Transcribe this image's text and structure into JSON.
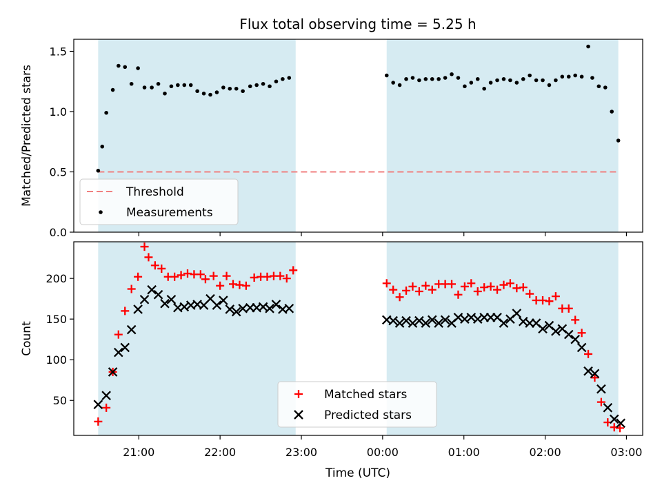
{
  "title": "Flux total observing time = 5.25 h",
  "xlabel": "Time (UTC)",
  "x_ticks": [
    {
      "h": 21,
      "label": "21:00"
    },
    {
      "h": 22,
      "label": "22:00"
    },
    {
      "h": 23,
      "label": "23:00"
    },
    {
      "h": 24,
      "label": "00:00"
    },
    {
      "h": 25,
      "label": "01:00"
    },
    {
      "h": 26,
      "label": "02:00"
    },
    {
      "h": 27,
      "label": "03:00"
    }
  ],
  "colors": {
    "shade": "#add8e6",
    "threshold": "#f08080",
    "measurement": "#000000",
    "matched": "#ff0000",
    "predicted": "#000000"
  },
  "chart_data": [
    {
      "type": "scatter",
      "ylabel": "Matched/Predicted stars",
      "xlim": [
        20.2,
        27.2
      ],
      "ylim": [
        0,
        1.6
      ],
      "y_ticks": [
        "0.0",
        "0.5",
        "1.0",
        "1.5"
      ],
      "shaded_intervals": [
        [
          20.5,
          22.93
        ],
        [
          24.05,
          26.9
        ]
      ],
      "legend": {
        "position": "lower-left",
        "entries": [
          "Threshold",
          "Measurements"
        ]
      },
      "threshold": {
        "name": "Threshold",
        "value": 0.5,
        "x_range": [
          20.5,
          26.9
        ],
        "style": "dashed"
      },
      "series": [
        {
          "name": "Measurements",
          "marker": "dot",
          "x": [
            20.5,
            20.55,
            20.6,
            20.68,
            20.75,
            20.83,
            20.91,
            20.99,
            21.07,
            21.16,
            21.24,
            21.32,
            21.4,
            21.48,
            21.56,
            21.64,
            21.72,
            21.8,
            21.88,
            21.96,
            22.04,
            22.12,
            22.2,
            22.28,
            22.37,
            22.45,
            22.53,
            22.61,
            22.69,
            22.77,
            22.85,
            24.05,
            24.13,
            24.21,
            24.29,
            24.37,
            24.45,
            24.53,
            24.61,
            24.69,
            24.77,
            24.85,
            24.93,
            25.01,
            25.09,
            25.17,
            25.25,
            25.33,
            25.41,
            25.49,
            25.57,
            25.65,
            25.73,
            25.81,
            25.89,
            25.97,
            26.05,
            26.13,
            26.21,
            26.29,
            26.37,
            26.45,
            26.53,
            26.58,
            26.66,
            26.74,
            26.82,
            26.9
          ],
          "y": [
            0.51,
            0.71,
            0.99,
            1.18,
            1.38,
            1.37,
            1.23,
            1.36,
            1.2,
            1.2,
            1.23,
            1.15,
            1.21,
            1.22,
            1.22,
            1.22,
            1.17,
            1.15,
            1.14,
            1.16,
            1.2,
            1.19,
            1.19,
            1.17,
            1.21,
            1.22,
            1.23,
            1.21,
            1.25,
            1.27,
            1.28,
            1.3,
            1.24,
            1.22,
            1.27,
            1.28,
            1.26,
            1.27,
            1.27,
            1.27,
            1.28,
            1.31,
            1.28,
            1.21,
            1.24,
            1.27,
            1.19,
            1.24,
            1.26,
            1.27,
            1.26,
            1.24,
            1.27,
            1.3,
            1.26,
            1.26,
            1.22,
            1.26,
            1.29,
            1.29,
            1.3,
            1.29,
            1.54,
            1.28,
            1.21,
            1.2,
            1.0,
            0.76
          ]
        }
      ]
    },
    {
      "type": "scatter",
      "ylabel": "Count",
      "xlim": [
        20.2,
        27.2
      ],
      "ylim": [
        7,
        245
      ],
      "y_ticks": [
        "50",
        "100",
        "150",
        "200"
      ],
      "shaded_intervals": [
        [
          20.5,
          22.93
        ],
        [
          24.05,
          26.9
        ]
      ],
      "legend": {
        "position": "lower-center",
        "entries": [
          "Matched stars",
          "Predicted stars"
        ]
      },
      "series": [
        {
          "name": "Matched stars",
          "marker": "plus",
          "x": [
            20.5,
            20.6,
            20.68,
            20.75,
            20.83,
            20.91,
            20.99,
            21.07,
            21.12,
            21.2,
            21.28,
            21.36,
            21.44,
            21.52,
            21.6,
            21.68,
            21.76,
            21.82,
            21.92,
            22.0,
            22.08,
            22.16,
            22.24,
            22.32,
            22.42,
            22.5,
            22.58,
            22.66,
            22.74,
            22.82,
            22.9,
            24.05,
            24.13,
            24.21,
            24.29,
            24.37,
            24.45,
            24.53,
            24.61,
            24.69,
            24.77,
            24.85,
            24.93,
            25.01,
            25.09,
            25.17,
            25.25,
            25.33,
            25.41,
            25.49,
            25.57,
            25.65,
            25.73,
            25.81,
            25.89,
            25.97,
            26.05,
            26.13,
            26.21,
            26.29,
            26.37,
            26.45,
            26.53,
            26.61,
            26.69,
            26.77,
            26.85,
            26.92
          ],
          "y": [
            24,
            41,
            85,
            131,
            160,
            187,
            202,
            239,
            226,
            216,
            212,
            202,
            202,
            204,
            206,
            205,
            205,
            199,
            203,
            191,
            203,
            193,
            192,
            191,
            201,
            202,
            202,
            203,
            203,
            200,
            210,
            194,
            186,
            177,
            185,
            190,
            184,
            191,
            186,
            193,
            193,
            193,
            180,
            190,
            194,
            184,
            189,
            190,
            186,
            192,
            194,
            188,
            189,
            181,
            173,
            173,
            172,
            178,
            163,
            163,
            149,
            133,
            107,
            78,
            48,
            23,
            17,
            16
          ]
        },
        {
          "name": "Predicted stars",
          "marker": "x",
          "x": [
            20.5,
            20.6,
            20.68,
            20.75,
            20.83,
            20.91,
            20.99,
            21.07,
            21.16,
            21.24,
            21.32,
            21.4,
            21.48,
            21.56,
            21.64,
            21.72,
            21.8,
            21.88,
            21.96,
            22.04,
            22.12,
            22.2,
            22.28,
            22.37,
            22.45,
            22.53,
            22.61,
            22.69,
            22.77,
            22.85,
            24.05,
            24.13,
            24.21,
            24.29,
            24.37,
            24.45,
            24.53,
            24.61,
            24.69,
            24.77,
            24.85,
            24.93,
            25.01,
            25.09,
            25.17,
            25.25,
            25.33,
            25.41,
            25.49,
            25.57,
            25.65,
            25.73,
            25.81,
            25.89,
            25.97,
            26.05,
            26.13,
            26.21,
            26.29,
            26.37,
            26.45,
            26.53,
            26.61,
            26.69,
            26.77,
            26.85,
            26.93
          ],
          "y": [
            45,
            56,
            85,
            109,
            115,
            137,
            162,
            174,
            186,
            180,
            169,
            174,
            164,
            165,
            167,
            168,
            167,
            175,
            167,
            173,
            162,
            159,
            163,
            164,
            164,
            165,
            163,
            168,
            162,
            163,
            149,
            148,
            145,
            148,
            145,
            148,
            145,
            149,
            145,
            149,
            145,
            152,
            150,
            152,
            150,
            152,
            152,
            152,
            145,
            150,
            157,
            147,
            145,
            145,
            138,
            142,
            135,
            138,
            131,
            125,
            115,
            86,
            83,
            64,
            41,
            27,
            22
          ]
        }
      ]
    }
  ]
}
